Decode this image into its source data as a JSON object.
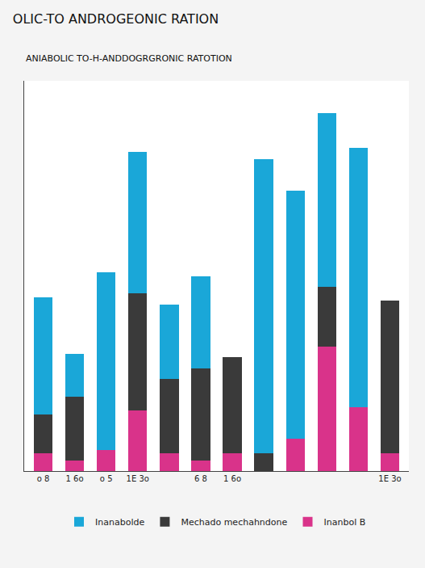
{
  "chart_data": {
    "type": "bar",
    "title": "OLIC-TO ANDROGEONIC RATION",
    "subtitle": "ANIABOLIC TO-H-ANDDOGRGRONIC RATOTION",
    "categories": [
      "o 8",
      "1 6o",
      "o 5",
      "1E 3o",
      null,
      "6 8",
      "1 6o",
      null,
      null,
      null,
      null,
      "1E 3o"
    ],
    "series": [
      {
        "name": "Inanbol B",
        "color": "#d9338a",
        "values": [
          5,
          3,
          6,
          17,
          5,
          3,
          5,
          0,
          9,
          35,
          18,
          5
        ]
      },
      {
        "name": "Mechado mechahndone",
        "color": "#3a3a3a",
        "values": [
          11,
          18,
          0,
          33,
          21,
          26,
          27,
          5,
          0,
          17,
          0,
          43
        ]
      },
      {
        "name": "Inanabolde",
        "color": "#1aa7d8",
        "values": [
          33,
          12,
          50,
          40,
          21,
          26,
          0,
          83,
          70,
          49,
          73,
          0
        ]
      }
    ],
    "stacked": true,
    "ylim": [
      0,
      110
    ],
    "tick_labels": "x",
    "grid": false,
    "legend": "bottom"
  }
}
